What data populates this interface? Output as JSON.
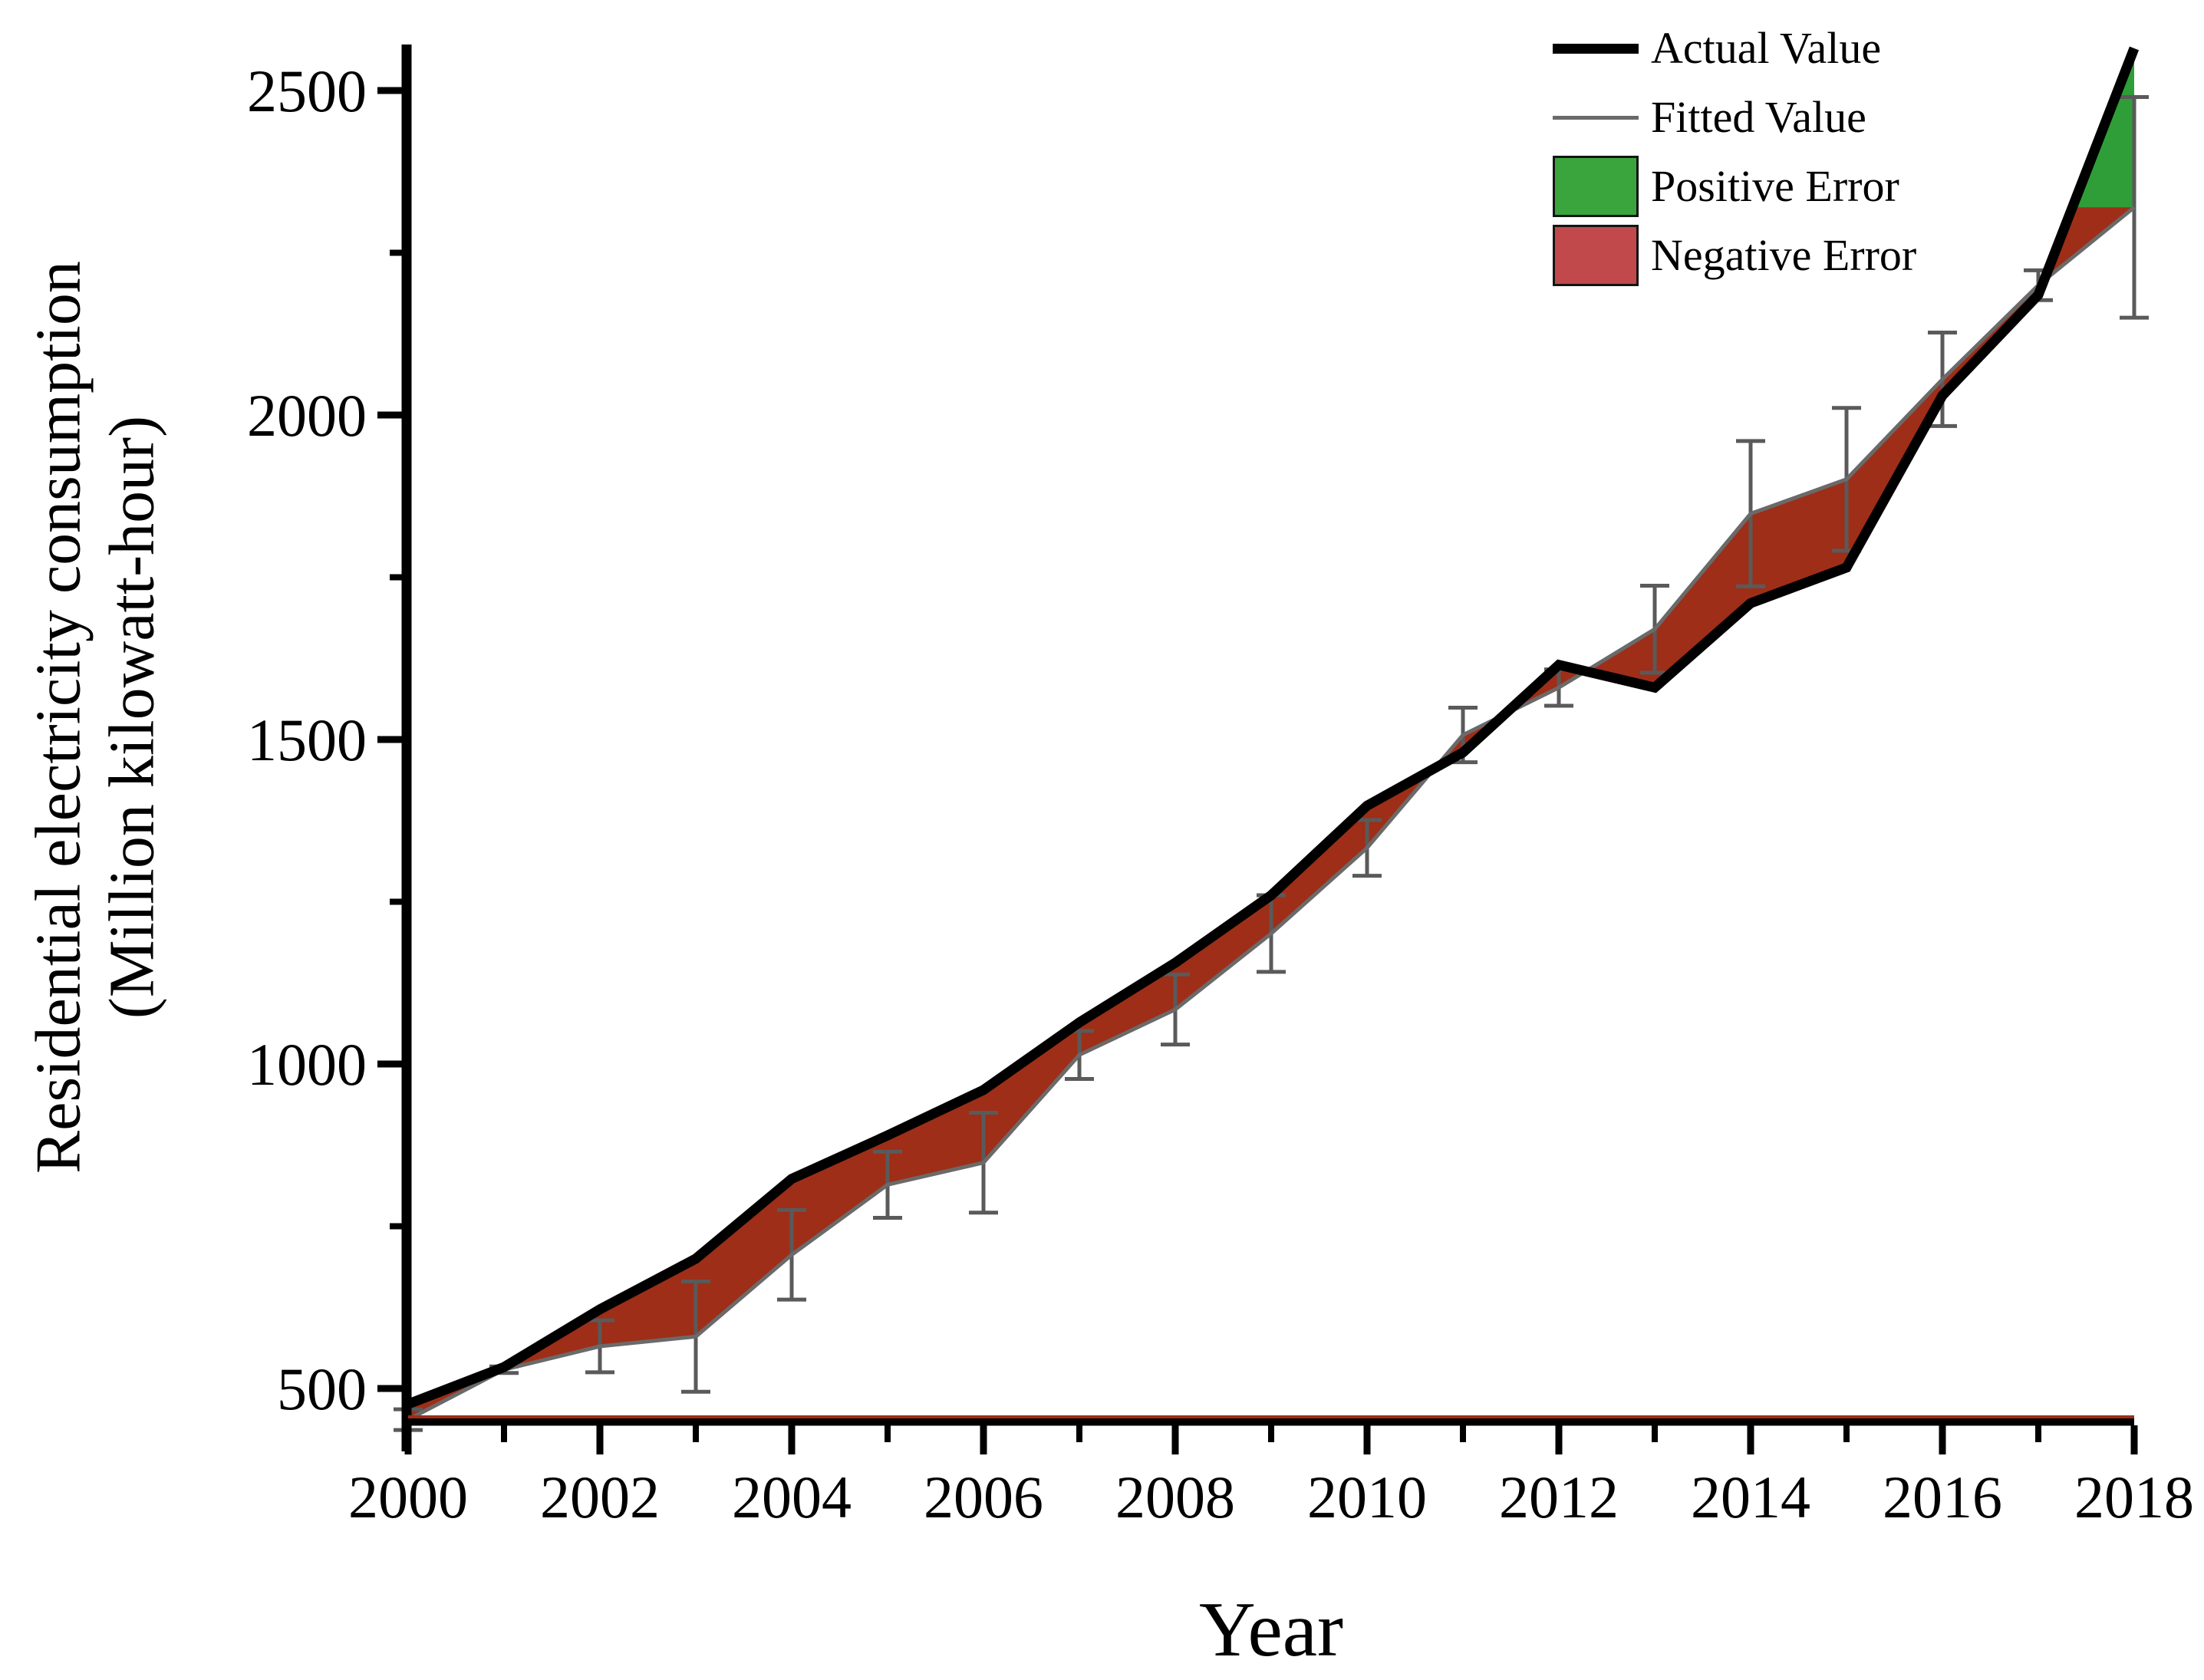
{
  "chart_data": {
    "type": "line",
    "title": "",
    "xlabel": "Year",
    "ylabel_line1": "Residential electricity consumption",
    "ylabel_line2": "(Million kilowatt-hour)",
    "x": [
      2000,
      2001,
      2002,
      2003,
      2004,
      2005,
      2006,
      2007,
      2008,
      2009,
      2010,
      2011,
      2012,
      2013,
      2014,
      2015,
      2016,
      2017,
      2018
    ],
    "series": [
      {
        "name": "Actual Value",
        "values": [
          476,
          533,
          622,
          700,
          823,
          890,
          960,
          1064,
          1156,
          1260,
          1398,
          1480,
          1615,
          1580,
          1710,
          1765,
          2030,
          2185,
          2565
        ]
      },
      {
        "name": "Fitted Value",
        "values": [
          452,
          529,
          565,
          580,
          706,
          814,
          848,
          1014,
          1084,
          1201,
          1333,
          1507,
          1580,
          1670,
          1848,
          1901,
          2055,
          2200,
          2320
        ]
      },
      {
        "name": "Error Bar Half Width",
        "values": [
          16,
          5,
          40,
          85,
          69,
          51,
          77,
          37,
          54,
          59,
          43,
          42,
          28,
          67,
          112,
          110,
          72,
          23,
          170
        ]
      }
    ],
    "xlim": [
      2000,
      2018
    ],
    "ylim": [
      405,
      2568
    ],
    "x_ticks_major": [
      2000,
      2002,
      2004,
      2006,
      2008,
      2010,
      2012,
      2014,
      2016,
      2018
    ],
    "x_ticks_minor": [
      2001,
      2003,
      2005,
      2007,
      2009,
      2011,
      2013,
      2015,
      2017
    ],
    "y_ticks_major": [
      500,
      1000,
      1500,
      2000,
      2500
    ],
    "y_ticks_minor": [
      750,
      1250,
      1750,
      2250
    ],
    "grid": "off",
    "legend": {
      "position": "top-right",
      "items": [
        {
          "label": "Actual Value",
          "type": "line",
          "color": "#000000"
        },
        {
          "label": "Fitted Value",
          "type": "line",
          "color": "#6a6a6a"
        },
        {
          "label": "Positive Error",
          "type": "box",
          "color": "#3aa53c"
        },
        {
          "label": "Negative Error",
          "type": "box",
          "color": "#c2494b"
        }
      ]
    },
    "colors": {
      "actual_line": "#000000",
      "fitted_line": "#6a6a6a",
      "error_bar": "#5a5a5a",
      "negative_error_fill": "#9e2e17",
      "positive_error_fill": "#2f9e38",
      "legend_positive_swatch": "#3aa53c",
      "legend_negative_swatch": "#c2494b"
    }
  }
}
